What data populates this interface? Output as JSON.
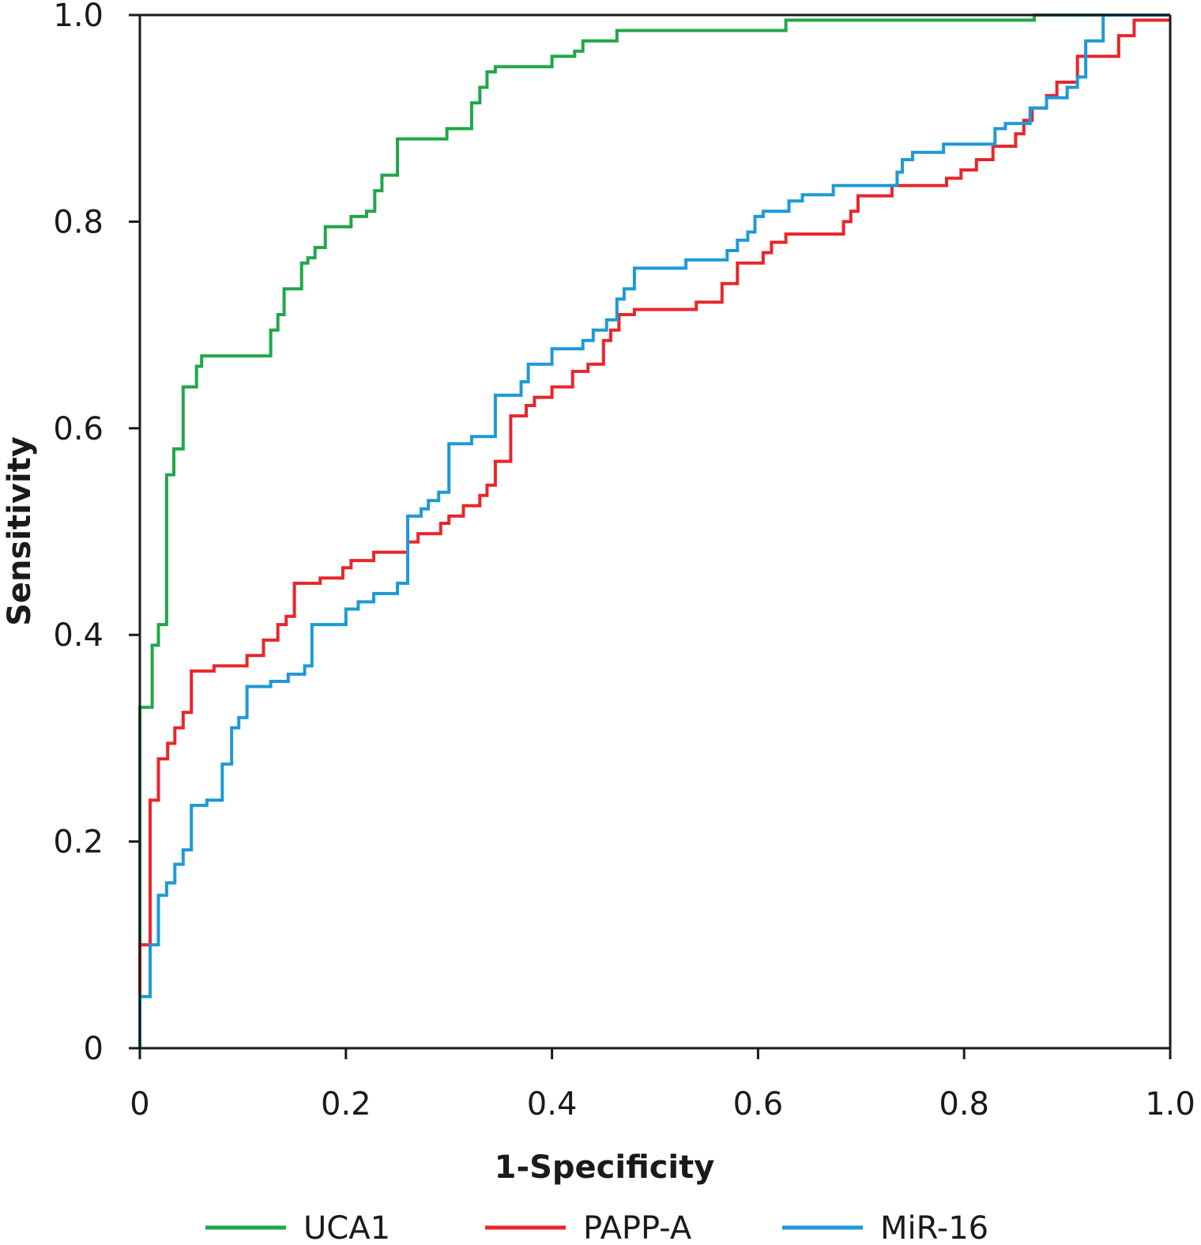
{
  "chart_data": {
    "type": "line",
    "title": "",
    "xlabel": "1-Specificity",
    "ylabel": "Sensitivity",
    "xlim": [
      0,
      1
    ],
    "ylim": [
      0,
      1
    ],
    "grid": false,
    "legend_position": "bottom",
    "x_ticks": [
      {
        "value": 0,
        "label": "0"
      },
      {
        "value": 0.2,
        "label": "0.2"
      },
      {
        "value": 0.4,
        "label": "0.4"
      },
      {
        "value": 0.6,
        "label": "0.6"
      },
      {
        "value": 0.8,
        "label": "0.8"
      },
      {
        "value": 1.0,
        "label": "1.0"
      }
    ],
    "y_ticks": [
      {
        "value": 0,
        "label": "0"
      },
      {
        "value": 0.2,
        "label": "0.2"
      },
      {
        "value": 0.4,
        "label": "0.4"
      },
      {
        "value": 0.6,
        "label": "0.6"
      },
      {
        "value": 0.8,
        "label": "0.8"
      },
      {
        "value": 1.0,
        "label": "1.0"
      }
    ],
    "series": [
      {
        "name": "UCA1",
        "color": "#1fa74a",
        "points": [
          [
            0,
            0
          ],
          [
            0,
            0.33
          ],
          [
            0.012,
            0.33
          ],
          [
            0.012,
            0.39
          ],
          [
            0.018,
            0.39
          ],
          [
            0.018,
            0.41
          ],
          [
            0.026,
            0.41
          ],
          [
            0.026,
            0.555
          ],
          [
            0.033,
            0.555
          ],
          [
            0.033,
            0.58
          ],
          [
            0.042,
            0.58
          ],
          [
            0.042,
            0.64
          ],
          [
            0.055,
            0.64
          ],
          [
            0.055,
            0.66
          ],
          [
            0.06,
            0.66
          ],
          [
            0.06,
            0.67
          ],
          [
            0.127,
            0.67
          ],
          [
            0.127,
            0.695
          ],
          [
            0.134,
            0.695
          ],
          [
            0.134,
            0.71
          ],
          [
            0.14,
            0.71
          ],
          [
            0.14,
            0.735
          ],
          [
            0.157,
            0.735
          ],
          [
            0.157,
            0.76
          ],
          [
            0.163,
            0.76
          ],
          [
            0.163,
            0.765
          ],
          [
            0.17,
            0.765
          ],
          [
            0.17,
            0.775
          ],
          [
            0.18,
            0.775
          ],
          [
            0.18,
            0.795
          ],
          [
            0.205,
            0.795
          ],
          [
            0.205,
            0.805
          ],
          [
            0.22,
            0.805
          ],
          [
            0.22,
            0.81
          ],
          [
            0.228,
            0.81
          ],
          [
            0.228,
            0.83
          ],
          [
            0.235,
            0.83
          ],
          [
            0.235,
            0.845
          ],
          [
            0.25,
            0.845
          ],
          [
            0.25,
            0.88
          ],
          [
            0.298,
            0.88
          ],
          [
            0.298,
            0.89
          ],
          [
            0.322,
            0.89
          ],
          [
            0.322,
            0.915
          ],
          [
            0.33,
            0.915
          ],
          [
            0.33,
            0.93
          ],
          [
            0.337,
            0.93
          ],
          [
            0.337,
            0.945
          ],
          [
            0.345,
            0.945
          ],
          [
            0.345,
            0.95
          ],
          [
            0.4,
            0.95
          ],
          [
            0.4,
            0.96
          ],
          [
            0.422,
            0.96
          ],
          [
            0.422,
            0.965
          ],
          [
            0.43,
            0.965
          ],
          [
            0.43,
            0.975
          ],
          [
            0.463,
            0.975
          ],
          [
            0.463,
            0.985
          ],
          [
            0.627,
            0.985
          ],
          [
            0.627,
            0.995
          ],
          [
            0.868,
            0.995
          ],
          [
            0.868,
            1.0
          ],
          [
            1.0,
            1.0
          ]
        ]
      },
      {
        "name": "PAPP-A",
        "color": "#e8262b",
        "points": [
          [
            0,
            0
          ],
          [
            0,
            0.1
          ],
          [
            0.01,
            0.1
          ],
          [
            0.01,
            0.24
          ],
          [
            0.018,
            0.24
          ],
          [
            0.018,
            0.28
          ],
          [
            0.027,
            0.28
          ],
          [
            0.027,
            0.295
          ],
          [
            0.034,
            0.295
          ],
          [
            0.034,
            0.31
          ],
          [
            0.042,
            0.31
          ],
          [
            0.042,
            0.325
          ],
          [
            0.05,
            0.325
          ],
          [
            0.05,
            0.365
          ],
          [
            0.072,
            0.365
          ],
          [
            0.072,
            0.37
          ],
          [
            0.104,
            0.37
          ],
          [
            0.104,
            0.38
          ],
          [
            0.12,
            0.38
          ],
          [
            0.12,
            0.395
          ],
          [
            0.134,
            0.395
          ],
          [
            0.134,
            0.41
          ],
          [
            0.142,
            0.41
          ],
          [
            0.142,
            0.418
          ],
          [
            0.15,
            0.418
          ],
          [
            0.15,
            0.45
          ],
          [
            0.175,
            0.45
          ],
          [
            0.175,
            0.455
          ],
          [
            0.197,
            0.455
          ],
          [
            0.197,
            0.465
          ],
          [
            0.205,
            0.465
          ],
          [
            0.205,
            0.472
          ],
          [
            0.227,
            0.472
          ],
          [
            0.227,
            0.48
          ],
          [
            0.26,
            0.48
          ],
          [
            0.26,
            0.49
          ],
          [
            0.27,
            0.49
          ],
          [
            0.27,
            0.498
          ],
          [
            0.292,
            0.498
          ],
          [
            0.292,
            0.508
          ],
          [
            0.3,
            0.508
          ],
          [
            0.3,
            0.515
          ],
          [
            0.314,
            0.515
          ],
          [
            0.314,
            0.525
          ],
          [
            0.33,
            0.525
          ],
          [
            0.33,
            0.535
          ],
          [
            0.337,
            0.535
          ],
          [
            0.337,
            0.545
          ],
          [
            0.345,
            0.545
          ],
          [
            0.345,
            0.568
          ],
          [
            0.36,
            0.568
          ],
          [
            0.36,
            0.612
          ],
          [
            0.375,
            0.612
          ],
          [
            0.375,
            0.622
          ],
          [
            0.383,
            0.622
          ],
          [
            0.383,
            0.63
          ],
          [
            0.4,
            0.63
          ],
          [
            0.4,
            0.64
          ],
          [
            0.42,
            0.64
          ],
          [
            0.42,
            0.655
          ],
          [
            0.435,
            0.655
          ],
          [
            0.435,
            0.662
          ],
          [
            0.45,
            0.662
          ],
          [
            0.45,
            0.685
          ],
          [
            0.457,
            0.685
          ],
          [
            0.457,
            0.695
          ],
          [
            0.465,
            0.695
          ],
          [
            0.465,
            0.71
          ],
          [
            0.48,
            0.71
          ],
          [
            0.48,
            0.715
          ],
          [
            0.54,
            0.715
          ],
          [
            0.54,
            0.722
          ],
          [
            0.565,
            0.722
          ],
          [
            0.565,
            0.74
          ],
          [
            0.58,
            0.74
          ],
          [
            0.58,
            0.76
          ],
          [
            0.605,
            0.76
          ],
          [
            0.605,
            0.77
          ],
          [
            0.613,
            0.77
          ],
          [
            0.613,
            0.78
          ],
          [
            0.627,
            0.78
          ],
          [
            0.627,
            0.788
          ],
          [
            0.683,
            0.788
          ],
          [
            0.683,
            0.8
          ],
          [
            0.69,
            0.8
          ],
          [
            0.69,
            0.81
          ],
          [
            0.697,
            0.81
          ],
          [
            0.697,
            0.825
          ],
          [
            0.73,
            0.825
          ],
          [
            0.73,
            0.835
          ],
          [
            0.783,
            0.835
          ],
          [
            0.783,
            0.842
          ],
          [
            0.797,
            0.842
          ],
          [
            0.797,
            0.85
          ],
          [
            0.812,
            0.85
          ],
          [
            0.812,
            0.86
          ],
          [
            0.828,
            0.86
          ],
          [
            0.828,
            0.873
          ],
          [
            0.85,
            0.873
          ],
          [
            0.85,
            0.885
          ],
          [
            0.858,
            0.885
          ],
          [
            0.858,
            0.898
          ],
          [
            0.866,
            0.898
          ],
          [
            0.866,
            0.91
          ],
          [
            0.88,
            0.91
          ],
          [
            0.88,
            0.922
          ],
          [
            0.89,
            0.922
          ],
          [
            0.89,
            0.935
          ],
          [
            0.91,
            0.935
          ],
          [
            0.91,
            0.96
          ],
          [
            0.95,
            0.96
          ],
          [
            0.95,
            0.98
          ],
          [
            0.965,
            0.98
          ],
          [
            0.965,
            0.995
          ],
          [
            1.0,
            0.995
          ]
        ]
      },
      {
        "name": "MiR-16",
        "color": "#1d9ad6",
        "points": [
          [
            0,
            0
          ],
          [
            0,
            0.05
          ],
          [
            0.01,
            0.05
          ],
          [
            0.01,
            0.1
          ],
          [
            0.018,
            0.1
          ],
          [
            0.018,
            0.148
          ],
          [
            0.026,
            0.148
          ],
          [
            0.026,
            0.16
          ],
          [
            0.034,
            0.16
          ],
          [
            0.034,
            0.178
          ],
          [
            0.042,
            0.178
          ],
          [
            0.042,
            0.192
          ],
          [
            0.05,
            0.192
          ],
          [
            0.05,
            0.235
          ],
          [
            0.065,
            0.235
          ],
          [
            0.065,
            0.24
          ],
          [
            0.08,
            0.24
          ],
          [
            0.08,
            0.275
          ],
          [
            0.089,
            0.275
          ],
          [
            0.089,
            0.31
          ],
          [
            0.096,
            0.31
          ],
          [
            0.096,
            0.32
          ],
          [
            0.104,
            0.32
          ],
          [
            0.104,
            0.35
          ],
          [
            0.127,
            0.35
          ],
          [
            0.127,
            0.355
          ],
          [
            0.144,
            0.355
          ],
          [
            0.144,
            0.362
          ],
          [
            0.16,
            0.362
          ],
          [
            0.16,
            0.37
          ],
          [
            0.167,
            0.37
          ],
          [
            0.167,
            0.41
          ],
          [
            0.2,
            0.41
          ],
          [
            0.2,
            0.425
          ],
          [
            0.212,
            0.425
          ],
          [
            0.212,
            0.432
          ],
          [
            0.227,
            0.432
          ],
          [
            0.227,
            0.44
          ],
          [
            0.25,
            0.44
          ],
          [
            0.25,
            0.45
          ],
          [
            0.26,
            0.45
          ],
          [
            0.26,
            0.515
          ],
          [
            0.273,
            0.515
          ],
          [
            0.273,
            0.522
          ],
          [
            0.28,
            0.522
          ],
          [
            0.28,
            0.53
          ],
          [
            0.29,
            0.53
          ],
          [
            0.29,
            0.538
          ],
          [
            0.3,
            0.538
          ],
          [
            0.3,
            0.585
          ],
          [
            0.322,
            0.585
          ],
          [
            0.322,
            0.592
          ],
          [
            0.345,
            0.592
          ],
          [
            0.345,
            0.632
          ],
          [
            0.37,
            0.632
          ],
          [
            0.37,
            0.645
          ],
          [
            0.377,
            0.645
          ],
          [
            0.377,
            0.662
          ],
          [
            0.4,
            0.662
          ],
          [
            0.4,
            0.677
          ],
          [
            0.43,
            0.677
          ],
          [
            0.43,
            0.685
          ],
          [
            0.44,
            0.685
          ],
          [
            0.44,
            0.695
          ],
          [
            0.453,
            0.695
          ],
          [
            0.453,
            0.705
          ],
          [
            0.463,
            0.705
          ],
          [
            0.463,
            0.725
          ],
          [
            0.47,
            0.725
          ],
          [
            0.47,
            0.735
          ],
          [
            0.48,
            0.735
          ],
          [
            0.48,
            0.755
          ],
          [
            0.53,
            0.755
          ],
          [
            0.53,
            0.763
          ],
          [
            0.57,
            0.763
          ],
          [
            0.57,
            0.772
          ],
          [
            0.58,
            0.772
          ],
          [
            0.58,
            0.782
          ],
          [
            0.59,
            0.782
          ],
          [
            0.59,
            0.79
          ],
          [
            0.597,
            0.79
          ],
          [
            0.597,
            0.805
          ],
          [
            0.605,
            0.805
          ],
          [
            0.605,
            0.81
          ],
          [
            0.63,
            0.81
          ],
          [
            0.63,
            0.82
          ],
          [
            0.643,
            0.82
          ],
          [
            0.643,
            0.826
          ],
          [
            0.673,
            0.826
          ],
          [
            0.673,
            0.835
          ],
          [
            0.735,
            0.835
          ],
          [
            0.735,
            0.848
          ],
          [
            0.74,
            0.848
          ],
          [
            0.74,
            0.86
          ],
          [
            0.75,
            0.86
          ],
          [
            0.75,
            0.867
          ],
          [
            0.78,
            0.867
          ],
          [
            0.78,
            0.875
          ],
          [
            0.83,
            0.875
          ],
          [
            0.83,
            0.89
          ],
          [
            0.84,
            0.89
          ],
          [
            0.84,
            0.895
          ],
          [
            0.864,
            0.895
          ],
          [
            0.864,
            0.91
          ],
          [
            0.88,
            0.91
          ],
          [
            0.88,
            0.92
          ],
          [
            0.9,
            0.92
          ],
          [
            0.9,
            0.93
          ],
          [
            0.91,
            0.93
          ],
          [
            0.91,
            0.94
          ],
          [
            0.918,
            0.94
          ],
          [
            0.918,
            0.975
          ],
          [
            0.935,
            0.975
          ],
          [
            0.935,
            1.0
          ],
          [
            1.0,
            1.0
          ]
        ]
      }
    ]
  }
}
